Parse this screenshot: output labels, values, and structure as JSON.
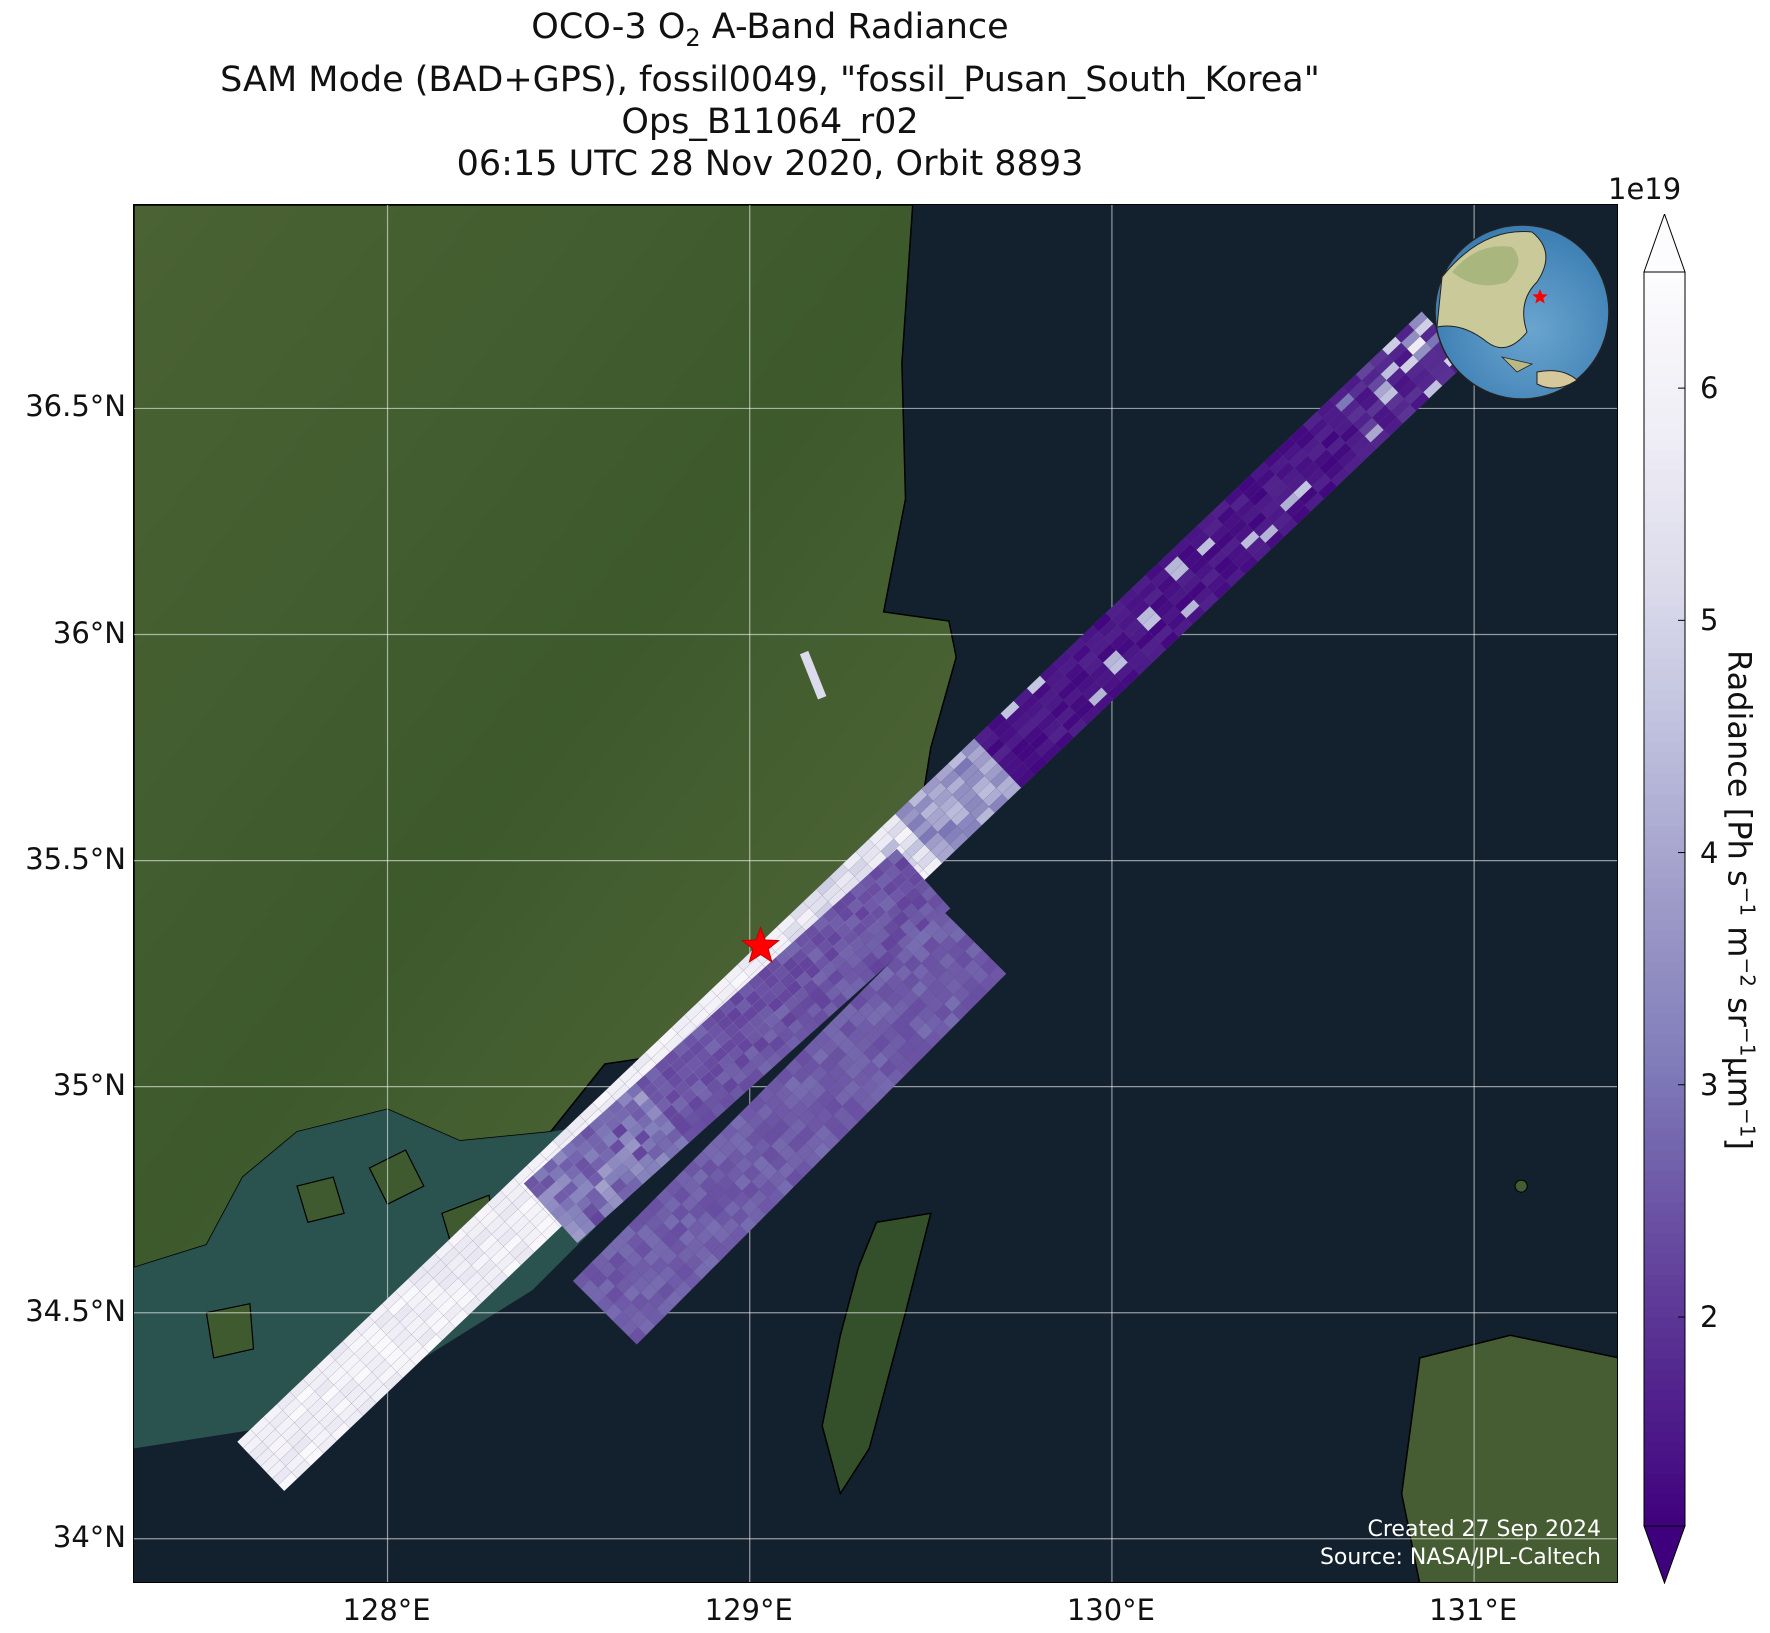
{
  "title": {
    "line1_prefix": "OCO-3 O",
    "line1_sub": "2",
    "line1_suffix": " A-Band Radiance",
    "line2": "SAM Mode (BAD+GPS), fossil0049, \"fossil_Pusan_South_Korea\"",
    "line3": "Ops_B11064_r02",
    "line4": "06:15 UTC 28 Nov 2020, Orbit 8893"
  },
  "map": {
    "lon_range": [
      127.3,
      131.4
    ],
    "lat_range": [
      33.9,
      36.95
    ],
    "lat_ticks": [
      {
        "value": 34.0,
        "label": "34°N"
      },
      {
        "value": 34.5,
        "label": "34.5°N"
      },
      {
        "value": 35.0,
        "label": "35°N"
      },
      {
        "value": 35.5,
        "label": "35.5°N"
      },
      {
        "value": 36.0,
        "label": "36°N"
      },
      {
        "value": 36.5,
        "label": "36.5°N"
      }
    ],
    "lon_ticks": [
      {
        "value": 128,
        "label": "128°E"
      },
      {
        "value": 129,
        "label": "129°E"
      },
      {
        "value": 130,
        "label": "130°E"
      },
      {
        "value": 131,
        "label": "131°E"
      }
    ],
    "grid": true,
    "target_site": {
      "lon": 129.03,
      "lat": 35.31,
      "marker": "red-star"
    },
    "land_color": "#3f5a2e",
    "sea_color": "#13212e",
    "shallow_sea_color": "#2f5a55"
  },
  "colorbar": {
    "exponent_label": "1e19",
    "label_prefix": "Radiance [Ph s",
    "label": "Radiance [Ph s⁻¹ m⁻² sr⁻¹μm⁻¹]",
    "vmin": 1.1,
    "vmax": 6.5,
    "ticks": [
      {
        "value": 2,
        "label": "2"
      },
      {
        "value": 3,
        "label": "3"
      },
      {
        "value": 4,
        "label": "4"
      },
      {
        "value": 5,
        "label": "5"
      },
      {
        "value": 6,
        "label": "6"
      }
    ],
    "colormap": [
      "#3f007d",
      "#54278f",
      "#6a51a3",
      "#807dba",
      "#9e9ac8",
      "#bcbddc",
      "#dadaeb",
      "#efedf5",
      "#fcfbfd"
    ],
    "extend": "both"
  },
  "credit": {
    "created": "Created 27 Sep 2024",
    "source": "Source: NASA/JPL-Caltech"
  },
  "inset": {
    "type": "globe",
    "marker": "red-star",
    "position": "top-right"
  }
}
